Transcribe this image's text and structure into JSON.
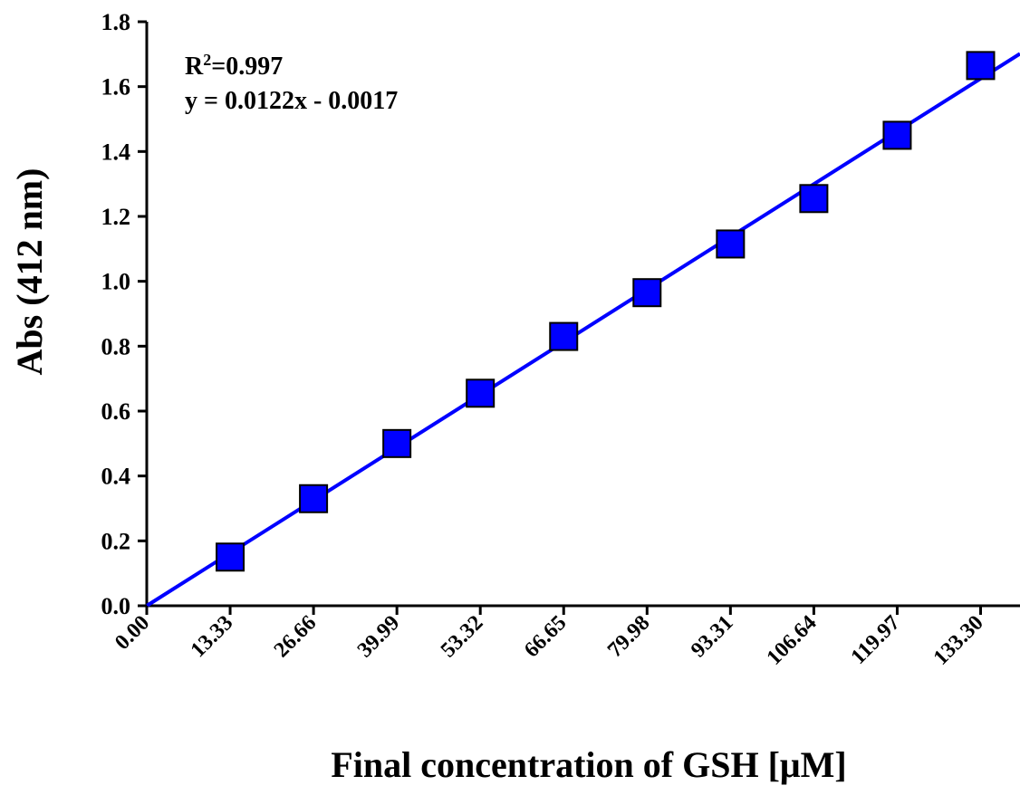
{
  "chart_data": {
    "type": "scatter",
    "title": "",
    "xlabel": "Final concentration of GSH [μM]",
    "ylabel": "Abs (412 nm)",
    "x_tick_labels": [
      "0.00",
      "13.33",
      "26.66",
      "39.99",
      "53.32",
      "66.65",
      "79.98",
      "93.31",
      "106.64",
      "119.97",
      "133.30"
    ],
    "y_tick_labels": [
      "0.0",
      "0.2",
      "0.4",
      "0.6",
      "0.8",
      "1.0",
      "1.2",
      "1.4",
      "1.6",
      "1.8"
    ],
    "xlim": [
      0,
      139.6
    ],
    "ylim": [
      0,
      1.8
    ],
    "grid": false,
    "series": [
      {
        "marker": "square",
        "color": "#0000ff",
        "x": [
          13.33,
          26.66,
          39.99,
          53.32,
          66.65,
          79.98,
          93.31,
          106.64,
          119.97,
          133.3
        ],
        "y": [
          0.15,
          0.33,
          0.5,
          0.655,
          0.83,
          0.965,
          1.115,
          1.255,
          1.45,
          1.665
        ]
      }
    ],
    "trendline": {
      "slope": 0.0122,
      "intercept": -0.0017,
      "color": "#0000ff"
    },
    "annotations": {
      "r2_prefix": "R",
      "r2_sup": "2",
      "r2_value": "=0.997",
      "equation": "y = 0.0122x - 0.0017"
    }
  }
}
